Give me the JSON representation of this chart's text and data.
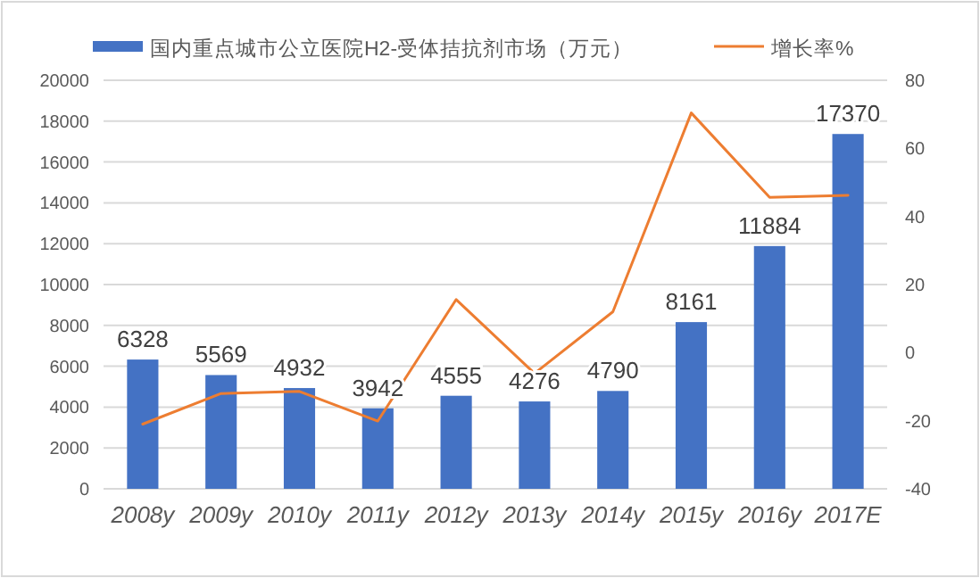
{
  "chart_data": {
    "type": "bar",
    "categories": [
      "2008y",
      "2009y",
      "2010y",
      "2011y",
      "2012y",
      "2013y",
      "2014y",
      "2015y",
      "2016y",
      "2017E"
    ],
    "series": [
      {
        "name": "国内重点城市公立医院H2-受体拮抗剂市场（万元）",
        "color": "#4472c4",
        "values": [
          6328,
          5569,
          4932,
          3942,
          4555,
          4276,
          4790,
          8161,
          11884,
          17370
        ],
        "value_labels": [
          "6328",
          "5569",
          "4932",
          "3942",
          "4555",
          "4276",
          "4790",
          "8161",
          "11884",
          "17370"
        ]
      },
      {
        "name": "增长率%",
        "type": "line",
        "axis": "y2",
        "color": "#ed7d31",
        "values": [
          -21,
          -12.0,
          -11.4,
          -20.1,
          15.6,
          -6.1,
          12.0,
          70.4,
          45.6,
          46.2
        ]
      }
    ],
    "ylim": [
      0,
      20000
    ],
    "yticks": [
      0,
      2000,
      4000,
      6000,
      8000,
      10000,
      12000,
      14000,
      16000,
      18000,
      20000
    ],
    "y2lim": [
      -40,
      80
    ],
    "y2ticks": [
      -40,
      -20,
      0,
      20,
      40,
      60,
      80
    ],
    "grid": "y",
    "legend": "top",
    "marker": "none",
    "line_style": "solid"
  }
}
